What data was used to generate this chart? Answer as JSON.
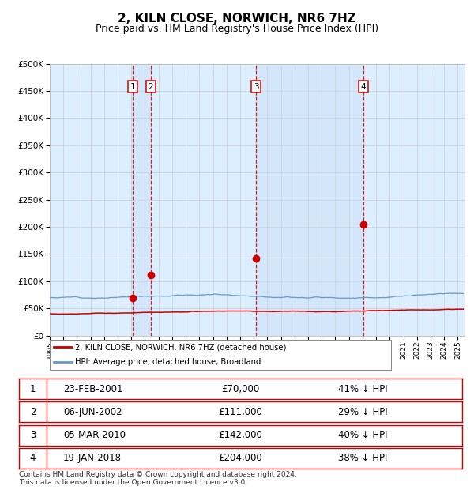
{
  "title": "2, KILN CLOSE, NORWICH, NR6 7HZ",
  "subtitle": "Price paid vs. HM Land Registry's House Price Index (HPI)",
  "title_fontsize": 11,
  "subtitle_fontsize": 9,
  "background_color": "#ffffff",
  "plot_bg_color": "#ddeeff",
  "grid_color": "#aaaaaa",
  "legend_label_red": "2, KILN CLOSE, NORWICH, NR6 7HZ (detached house)",
  "legend_label_blue": "HPI: Average price, detached house, Broadland",
  "footer": "Contains HM Land Registry data © Crown copyright and database right 2024.\nThis data is licensed under the Open Government Licence v3.0.",
  "transactions": [
    {
      "num": 1,
      "date": "23-FEB-2001",
      "price": 70000,
      "hpi_diff": "41% ↓ HPI",
      "year": 2001.12
    },
    {
      "num": 2,
      "date": "06-JUN-2002",
      "price": 111000,
      "hpi_diff": "29% ↓ HPI",
      "year": 2002.43
    },
    {
      "num": 3,
      "date": "05-MAR-2010",
      "price": 142000,
      "hpi_diff": "40% ↓ HPI",
      "year": 2010.17
    },
    {
      "num": 4,
      "date": "19-JAN-2018",
      "price": 204000,
      "hpi_diff": "38% ↓ HPI",
      "year": 2018.05
    }
  ],
  "ylim": [
    0,
    500000
  ],
  "yticks": [
    0,
    50000,
    100000,
    150000,
    200000,
    250000,
    300000,
    350000,
    400000,
    450000,
    500000
  ],
  "xlim_start": 1995.0,
  "xlim_end": 2025.5,
  "red_line_color": "#cc0000",
  "blue_line_color": "#6699cc",
  "shade_color": "#c8dcf0",
  "vline_color": "#cc0000"
}
